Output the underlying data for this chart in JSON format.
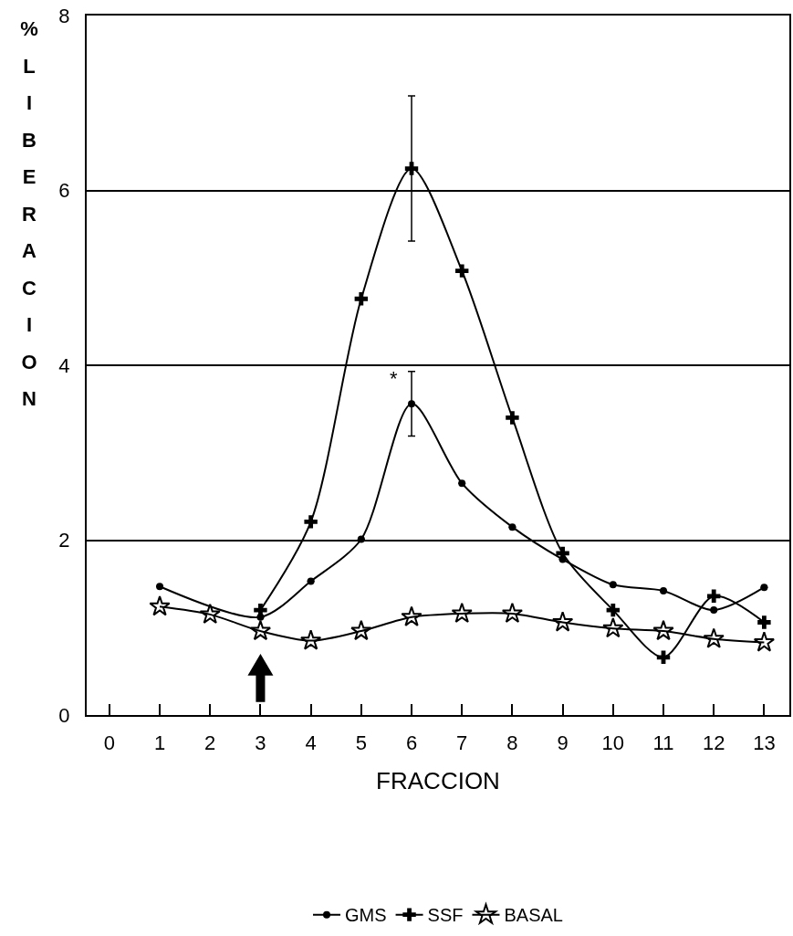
{
  "chart_data": {
    "type": "line",
    "xlabel": "FRACCION",
    "ylabel": "% LIBERACION",
    "x": [
      1,
      2,
      3,
      4,
      5,
      6,
      7,
      8,
      9,
      10,
      11,
      12,
      13
    ],
    "series": [
      {
        "name": "GMS",
        "color": "#000000",
        "marker": "circle",
        "values": [
          1.47,
          null,
          1.12,
          1.53,
          2.01,
          3.56,
          2.65,
          2.15,
          1.78,
          1.49,
          1.42,
          1.2,
          1.46
        ],
        "errors": [
          null,
          null,
          null,
          null,
          null,
          0.37,
          null,
          null,
          null,
          null,
          null,
          null,
          null
        ]
      },
      {
        "name": "SSF",
        "color": "#000000",
        "marker": "cross",
        "values": [
          null,
          null,
          1.2,
          2.21,
          4.76,
          6.25,
          5.08,
          3.4,
          1.85,
          1.2,
          0.66,
          1.36,
          1.06
        ],
        "errors": [
          null,
          null,
          null,
          null,
          null,
          0.83,
          null,
          null,
          null,
          null,
          null,
          null,
          null
        ]
      },
      {
        "name": "BASAL",
        "color": "#000000",
        "marker": "star",
        "values": [
          1.24,
          1.15,
          0.96,
          0.85,
          0.96,
          1.12,
          1.16,
          1.16,
          1.06,
          0.99,
          0.96,
          0.87,
          0.83
        ]
      }
    ],
    "annotations": [
      {
        "text": "*",
        "x": 6,
        "y": 3.93
      }
    ],
    "xlim": [
      -0.45,
      13.5
    ],
    "xticks": [
      0,
      1,
      2,
      3,
      4,
      5,
      6,
      7,
      8,
      9,
      10,
      11,
      12,
      13
    ],
    "ylim": [
      0,
      8
    ],
    "yticks": [
      0,
      2,
      4,
      6,
      8
    ],
    "grid": "y",
    "legend": "bottom",
    "line_style": "solid"
  }
}
